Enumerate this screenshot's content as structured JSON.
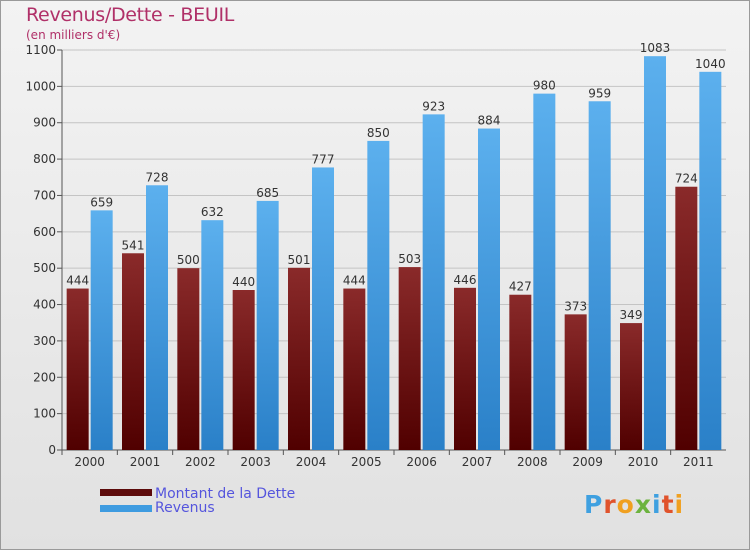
{
  "header": {
    "title": "Revenus/Dette - BEUIL",
    "subtitle": "(en milliers d'€)"
  },
  "chart_data": {
    "type": "bar",
    "categories": [
      "2000",
      "2001",
      "2002",
      "2003",
      "2004",
      "2005",
      "2006",
      "2007",
      "2008",
      "2009",
      "2010",
      "2011"
    ],
    "series": [
      {
        "name": "Montant de la Dette",
        "values": [
          444,
          541,
          500,
          440,
          501,
          444,
          503,
          446,
          427,
          373,
          349,
          724
        ],
        "color": "#6b1414"
      },
      {
        "name": "Revenus",
        "values": [
          659,
          728,
          632,
          685,
          777,
          850,
          923,
          884,
          980,
          959,
          1083,
          1040
        ],
        "color": "#3e9be0"
      }
    ],
    "ylim": [
      0,
      1100
    ],
    "yticks": [
      0,
      100,
      200,
      300,
      400,
      500,
      600,
      700,
      800,
      900,
      1000,
      1100
    ],
    "grid": true,
    "legend_position": "bottom-left"
  },
  "legend": {
    "items": [
      {
        "label": "Montant de la Dette",
        "color": "#5c0a0a"
      },
      {
        "label": "Revenus",
        "color": "#3e9be0"
      }
    ]
  },
  "logo": {
    "text": "Proxiti",
    "letter_colors": [
      "#3fa0e0",
      "#e0532c",
      "#f0a020",
      "#6cb33e",
      "#3fa0e0",
      "#e0532c",
      "#f0a020"
    ]
  }
}
